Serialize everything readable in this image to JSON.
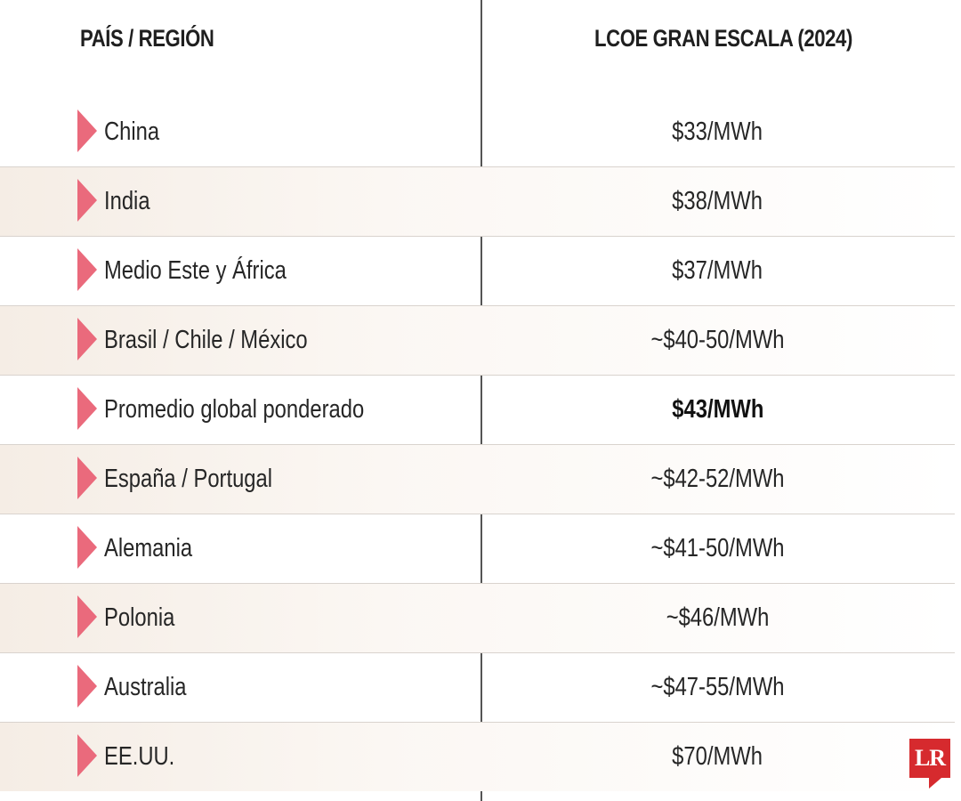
{
  "header": {
    "col_country": "PAÍS / REGIÓN",
    "col_value": "LCOE GRAN ESCALA (2024)"
  },
  "rows": [
    {
      "country": "China",
      "value": "$33/MWh"
    },
    {
      "country": "India",
      "value": "$38/MWh"
    },
    {
      "country": "Medio Este y África",
      "value": "$37/MWh"
    },
    {
      "country": "Brasil / Chile / México",
      "value": "~$40-50/MWh"
    },
    {
      "country": "Promedio global ponderado",
      "value": "$43/MWh"
    },
    {
      "country": "España / Portugal",
      "value": "~$42-52/MWh"
    },
    {
      "country": "Alemania",
      "value": "~$41-50/MWh"
    },
    {
      "country": "Polonia",
      "value": "~$46/MWh"
    },
    {
      "country": "Australia",
      "value": "~$47-55/MWh"
    },
    {
      "country": "EE.UU.",
      "value": "$70/MWh"
    }
  ],
  "logo": {
    "text": "LR"
  },
  "colors": {
    "marker": "#ea6a7c",
    "logo": "#d62a2e",
    "alt_row": "#f5ede5"
  }
}
